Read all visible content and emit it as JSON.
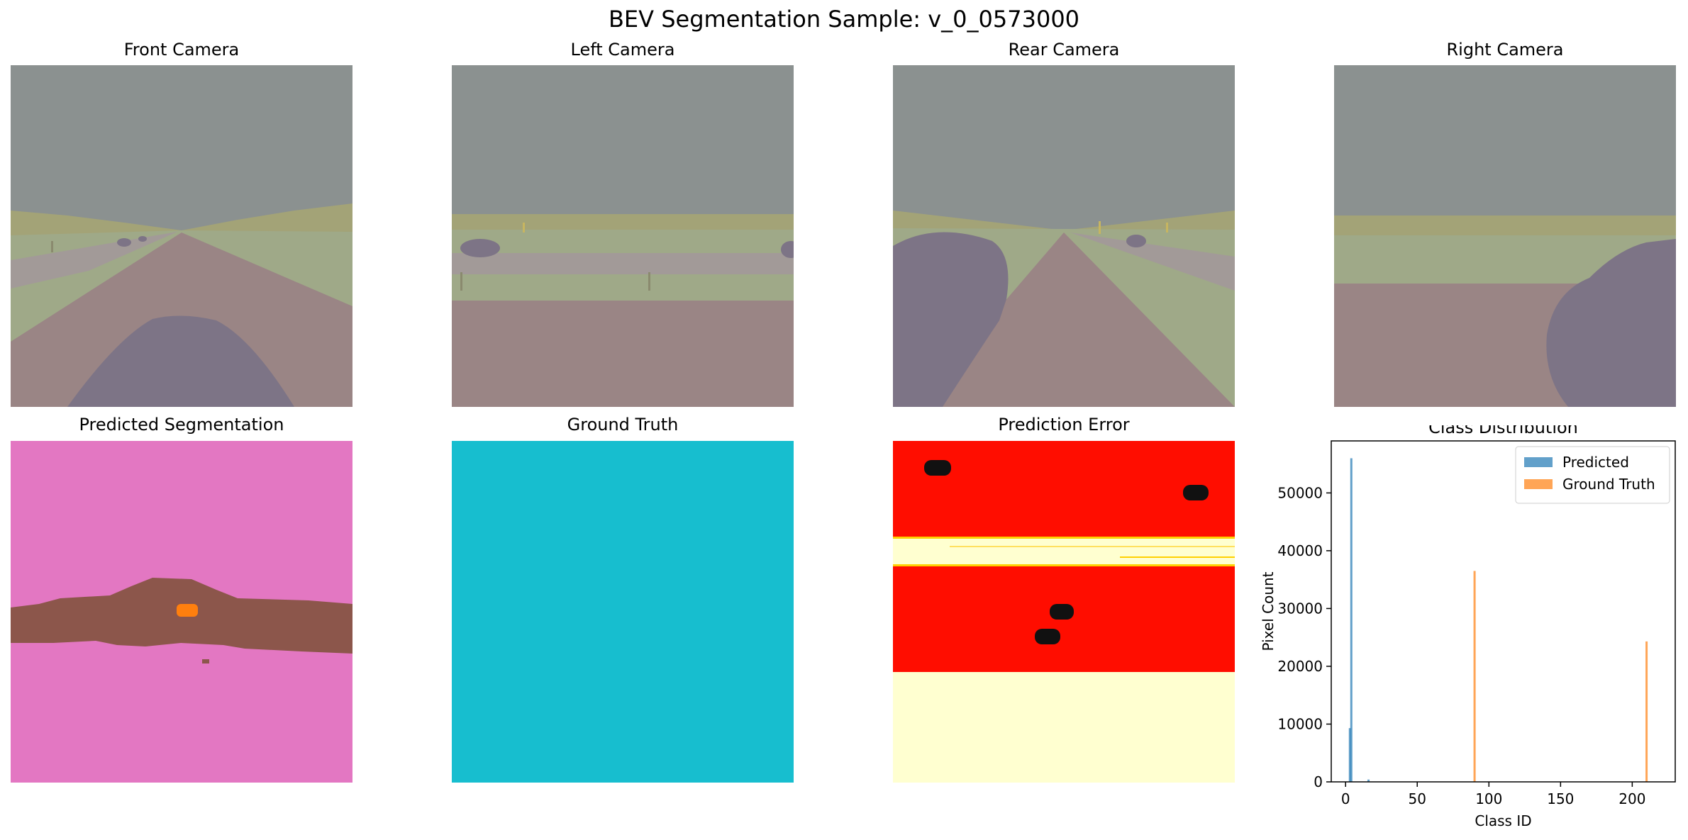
{
  "figure": {
    "title": "BEV Segmentation Sample: v_0_0573000"
  },
  "panels": {
    "front": {
      "title": "Front Camera"
    },
    "left": {
      "title": "Left Camera"
    },
    "rear": {
      "title": "Rear Camera"
    },
    "right": {
      "title": "Right Camera"
    },
    "pred": {
      "title": "Predicted Segmentation"
    },
    "gt": {
      "title": "Ground Truth"
    },
    "error": {
      "title": "Prediction Error"
    }
  },
  "colors": {
    "sky": "#8b9190",
    "grass": "#9fa988",
    "road": "#9a8585",
    "vehicle": "#7d7486",
    "pred_bg": "#e377c2",
    "pred_band": "#8c564b",
    "pred_obj": "#ff7f0e",
    "gt_fill": "#17becf",
    "err_hot": "#ff0d00",
    "err_cold": "#ffffd0"
  },
  "chart_data": {
    "type": "bar",
    "title": "Class Distribution",
    "xlabel": "Class ID",
    "ylabel": "Pixel Count",
    "xlim": [
      -10,
      230
    ],
    "ylim": [
      0,
      59000
    ],
    "xticks": [
      0,
      50,
      100,
      150,
      200
    ],
    "yticks": [
      0,
      10000,
      20000,
      30000,
      40000,
      50000
    ],
    "legend": "top-right",
    "series": [
      {
        "name": "Predicted",
        "color": "#1f77b4",
        "x": [
          3,
          4,
          16
        ],
        "values": [
          9300,
          56000,
          400
        ]
      },
      {
        "name": "Ground Truth",
        "color": "#ff7f0e",
        "x": [
          90,
          210
        ],
        "values": [
          36500,
          24300
        ]
      }
    ]
  }
}
